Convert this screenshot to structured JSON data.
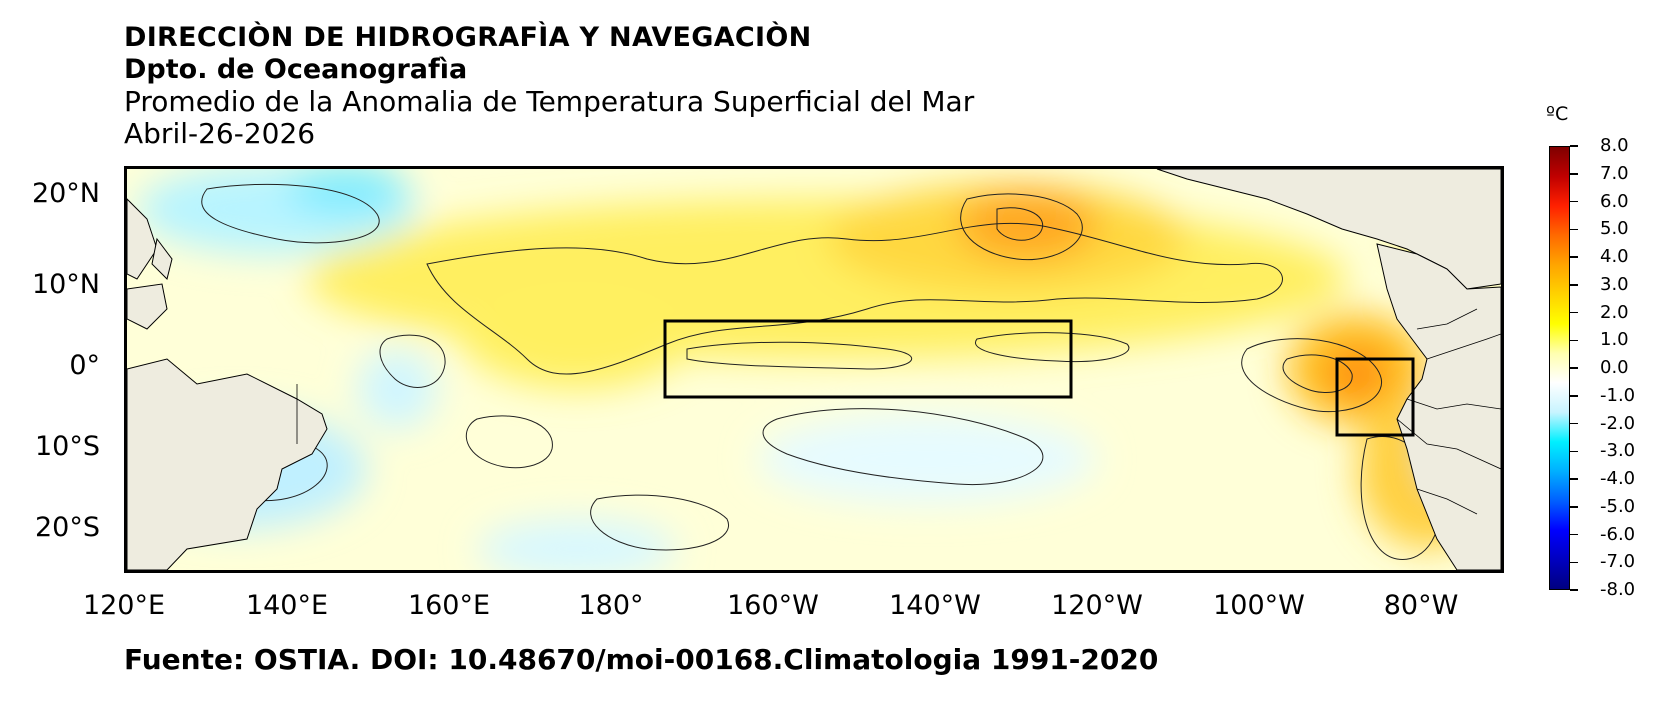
{
  "header": {
    "line1": "DIRECCIÒN DE HIDROGRAFÌA Y NAVEGACIÒN",
    "line2": "Dpto. de Oceanografìa",
    "line3": "Promedio de la Anomalia de Temperatura Superficial del Mar",
    "line4": "Abril-26-2026"
  },
  "map": {
    "lat_labels": [
      "20°N",
      "10°N",
      "0°",
      "10°S",
      "20°S"
    ],
    "lon_labels": [
      "120°E",
      "140°E",
      "160°E",
      "180°",
      "160°W",
      "140°W",
      "120°W",
      "100°W",
      "80°W"
    ],
    "region_boxes": [
      "Niño 3.4",
      "Niño 1+2"
    ],
    "land_color": "#eeecdf",
    "contour_color": "#222222"
  },
  "colorbar": {
    "unit": "ºC",
    "labels": [
      "8.0",
      "7.0",
      "6.0",
      "5.0",
      "4.0",
      "3.0",
      "2.0",
      "1.0",
      "0.0",
      "-1.0",
      "-2.0",
      "-3.0",
      "-4.0",
      "-5.0",
      "-6.0",
      "-7.0",
      "-8.0"
    ],
    "colors": [
      "#7f0000",
      "#c00000",
      "#ff2000",
      "#ff6a00",
      "#ffa500",
      "#ffd200",
      "#ffff00",
      "#ffffb0",
      "#ffffff",
      "#c8f4ff",
      "#00f0ff",
      "#00b0ff",
      "#0060ff",
      "#0000ff",
      "#0000c0",
      "#000080"
    ]
  },
  "footer": {
    "source": "Fuente: OSTIA. DOI: 10.48670/moi-00168.Climatologia 1991-2020"
  }
}
